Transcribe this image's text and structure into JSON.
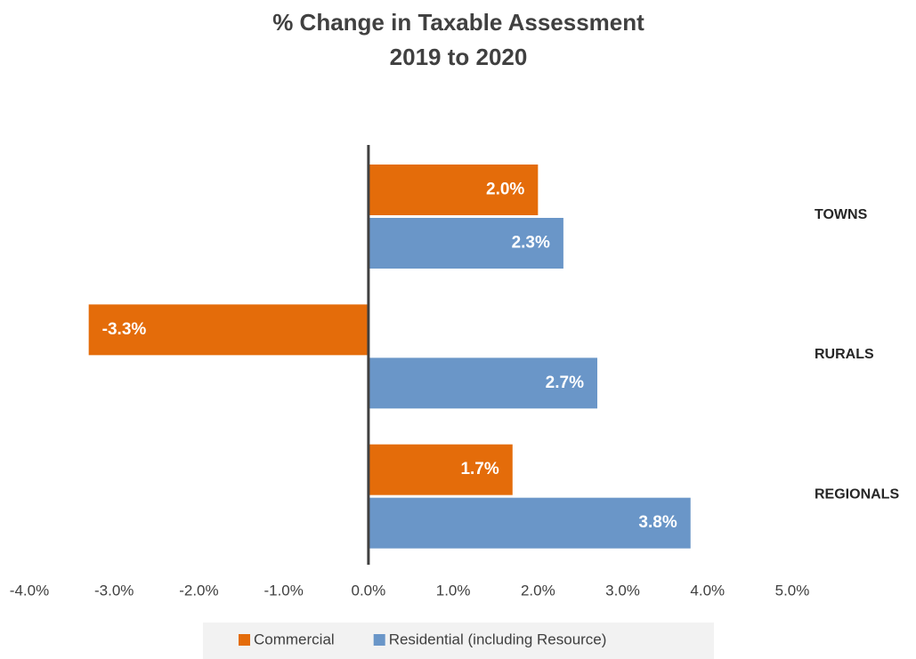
{
  "chart_data": {
    "type": "bar",
    "orientation": "horizontal",
    "title": [
      "% Change in Taxable Assessment",
      "2019 to 2020"
    ],
    "categories": [
      "TOWNS",
      "RURALS",
      "REGIONALS"
    ],
    "series": [
      {
        "name": "Commercial",
        "color": "#e46c0a",
        "values": [
          2.0,
          -3.3,
          1.7
        ],
        "value_labels": [
          "2.0%",
          "-3.3%",
          "1.7%"
        ]
      },
      {
        "name": "Residential (including Resource)",
        "color": "#6a96c8",
        "values": [
          2.3,
          2.7,
          3.8
        ],
        "value_labels": [
          "2.3%",
          "2.7%",
          "3.8%"
        ]
      }
    ],
    "xlim": [
      -4,
      5
    ],
    "xticks": [
      {
        "value": -4,
        "label": "-4.0%"
      },
      {
        "value": -3,
        "label": "-3.0%"
      },
      {
        "value": -2,
        "label": "-2.0%"
      },
      {
        "value": -1,
        "label": "-1.0%"
      },
      {
        "value": 0,
        "label": "0.0%"
      },
      {
        "value": 1,
        "label": "1.0%"
      },
      {
        "value": 2,
        "label": "2.0%"
      },
      {
        "value": 3,
        "label": "3.0%"
      },
      {
        "value": 4,
        "label": "4.0%"
      },
      {
        "value": 5,
        "label": "5.0%"
      }
    ],
    "grid": false,
    "legend": "bottom"
  }
}
